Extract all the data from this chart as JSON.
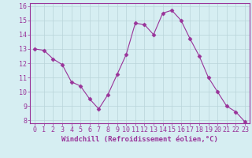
{
  "x": [
    0,
    1,
    2,
    3,
    4,
    5,
    6,
    7,
    8,
    9,
    10,
    11,
    12,
    13,
    14,
    15,
    16,
    17,
    18,
    19,
    20,
    21,
    22,
    23
  ],
  "y": [
    13.0,
    12.9,
    12.3,
    11.9,
    10.7,
    10.4,
    9.5,
    8.8,
    9.8,
    11.2,
    12.6,
    14.8,
    14.7,
    14.0,
    15.5,
    15.7,
    15.0,
    13.7,
    12.5,
    11.0,
    10.0,
    9.0,
    8.6,
    7.9
  ],
  "xlabel": "Windchill (Refroidissement éolien,°C)",
  "ylim": [
    8,
    16
  ],
  "xlim": [
    -0.5,
    23.5
  ],
  "yticks": [
    8,
    9,
    10,
    11,
    12,
    13,
    14,
    15,
    16
  ],
  "xticks": [
    0,
    1,
    2,
    3,
    4,
    5,
    6,
    7,
    8,
    9,
    10,
    11,
    12,
    13,
    14,
    15,
    16,
    17,
    18,
    19,
    20,
    21,
    22,
    23
  ],
  "line_color": "#993399",
  "marker": "D",
  "marker_size": 2.5,
  "bg_color": "#d6eef2",
  "grid_color": "#b8d4d9",
  "tick_label_color": "#993399",
  "xlabel_color": "#993399",
  "xlabel_fontsize": 6.5,
  "tick_fontsize": 6.0
}
